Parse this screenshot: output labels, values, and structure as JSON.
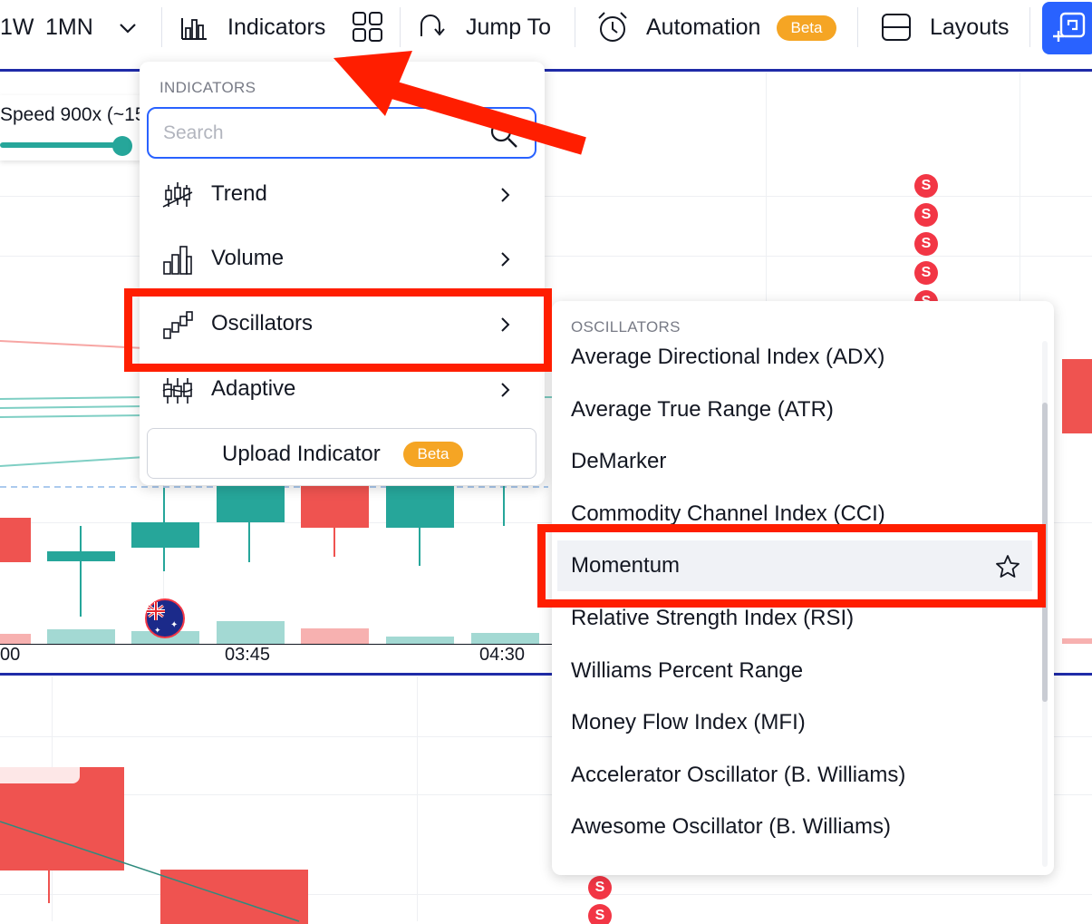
{
  "toolbar": {
    "timeframes": [
      "1W",
      "1MN"
    ],
    "indicators_label": "Indicators",
    "jump_to_label": "Jump To",
    "automation_label": "Automation",
    "automation_badge": "Beta",
    "layouts_label": "Layouts"
  },
  "chart": {
    "speed_label": "Speed 900x (~15",
    "time_labels": [
      "00",
      "03:45",
      "04:30"
    ],
    "signal_letter": "S",
    "colors": {
      "up": "#26a69a",
      "down": "#ef5350",
      "accent": "#2962ff"
    }
  },
  "indicators_menu": {
    "header": "INDICATORS",
    "search_placeholder": "Search",
    "items": [
      {
        "label": "Trend",
        "icon": "trend-candles-icon"
      },
      {
        "label": "Volume",
        "icon": "volume-bars-icon"
      },
      {
        "label": "Oscillators",
        "icon": "oscillator-steps-icon"
      },
      {
        "label": "Adaptive",
        "icon": "adaptive-candles-icon"
      }
    ],
    "upload_label": "Upload Indicator",
    "upload_badge": "Beta"
  },
  "oscillators_menu": {
    "header": "OSCILLATORS",
    "items": [
      "Average Directional Index (ADX)",
      "Average True Range (ATR)",
      "DeMarker",
      "Commodity Channel Index (CCI)",
      "Momentum",
      "Relative Strength Index (RSI)",
      "Williams Percent Range",
      "Money Flow Index (MFI)",
      "Accelerator Oscillator (B. Williams)",
      "Awesome Oscillator (B. Williams)"
    ],
    "hovered_item": "Momentum"
  }
}
